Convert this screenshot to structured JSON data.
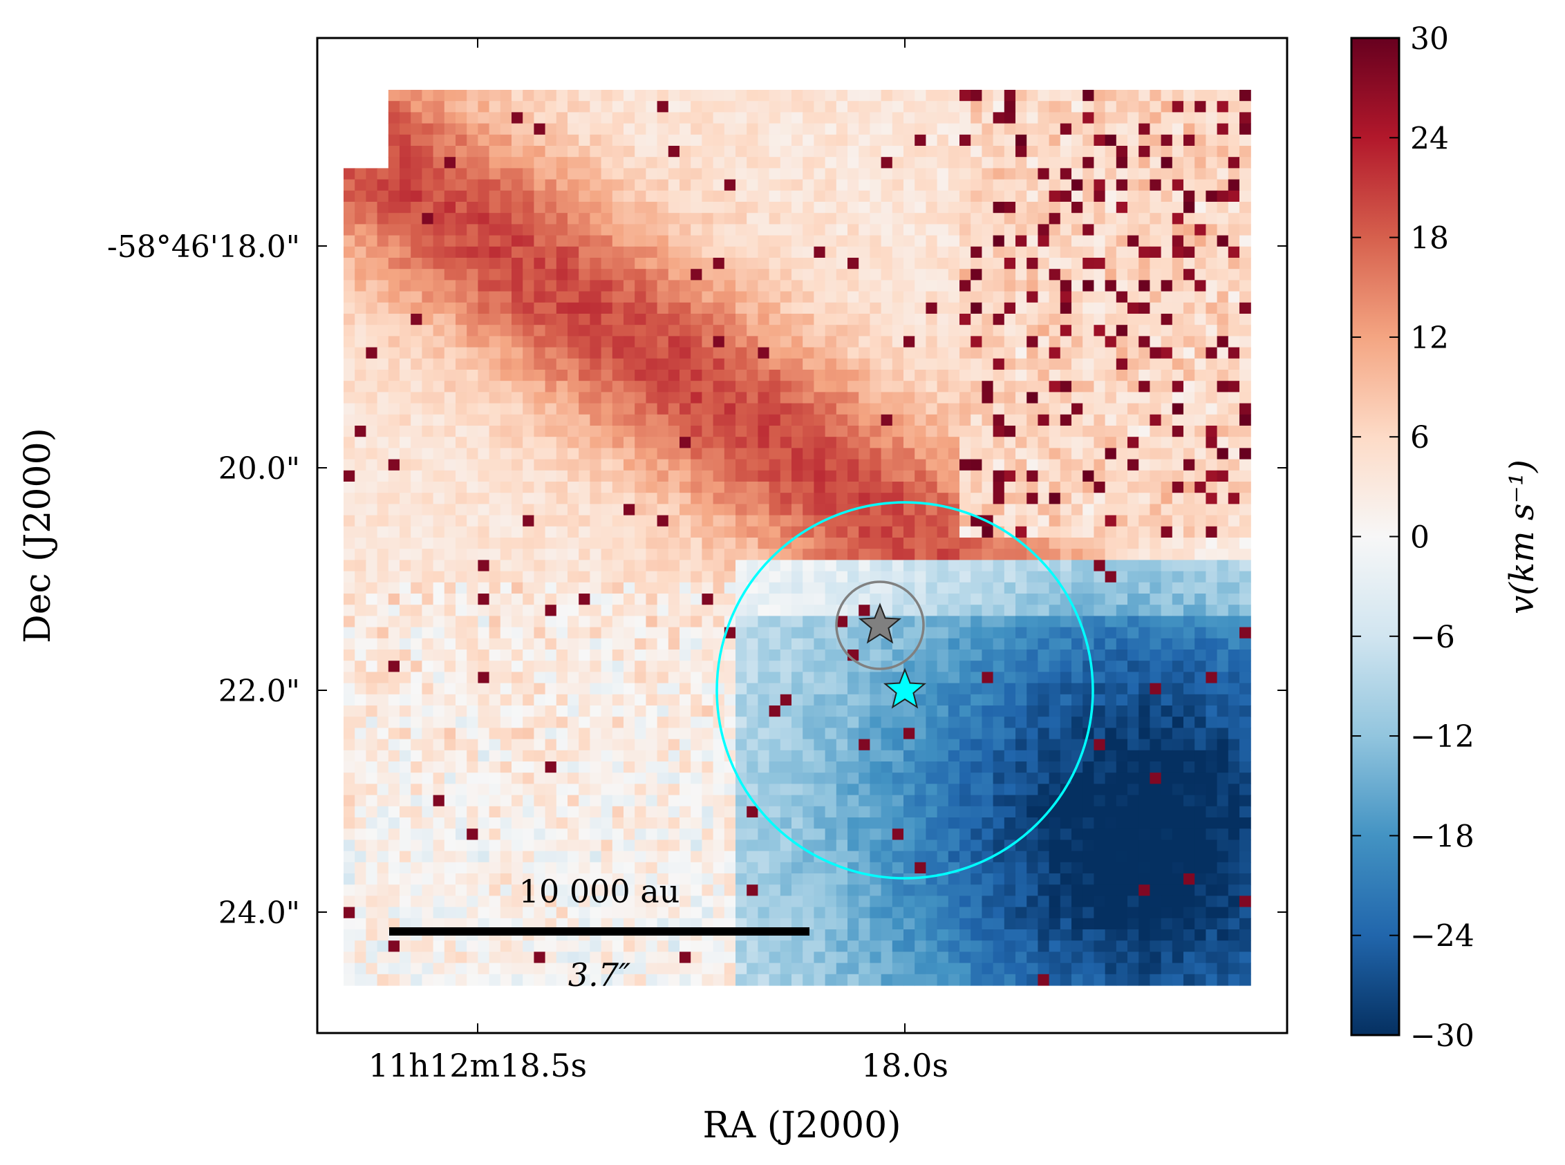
{
  "chart_data": {
    "type": "heatmap",
    "title": "",
    "xlabel": "RA (J2000)",
    "ylabel": "Dec (J2000)",
    "x_ticks": [
      "11h12m18.5s",
      "18.0s"
    ],
    "y_ticks": [
      "-58°46'18.0\"",
      "20.0\"",
      "22.0\"",
      "24.0\""
    ],
    "colorbar": {
      "label": "v(km s⁻¹)",
      "ticks": [
        "30",
        "24",
        "18",
        "12",
        "6",
        "0",
        "−6",
        "−12",
        "−18",
        "−24",
        "−30"
      ],
      "vmin": -30,
      "vmax": 30,
      "cmap": "RdBu_r"
    },
    "description_values": {
      "redshifted_region": "upper-left, peak ~ +20 km/s along diagonal ridge",
      "blueshifted_region": "lower-right, minimum ~ −25 km/s"
    },
    "scalebar": {
      "top_label": "10 000 au",
      "bottom_label": "3.7″"
    },
    "markers": [
      {
        "name": "gray-star",
        "color": "#808080"
      },
      {
        "name": "cyan-star",
        "color": "#00FFFF"
      }
    ],
    "circles": [
      {
        "name": "cyan-circle",
        "color": "#00FFFF"
      },
      {
        "name": "gray-circle",
        "color": "#808080"
      }
    ],
    "grid": false
  }
}
